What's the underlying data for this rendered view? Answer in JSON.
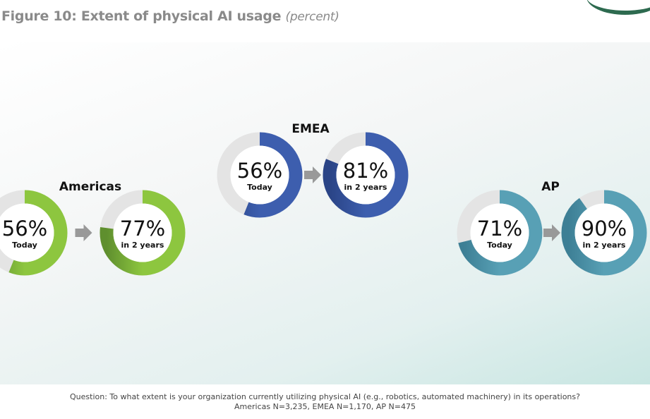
{
  "title": {
    "main": "Figure 10: Extent of physical AI usage",
    "unit": "(percent)"
  },
  "chart_data": {
    "type": "donut",
    "title": "Figure 10: Extent of physical AI usage (percent)",
    "regions": [
      {
        "name": "Americas",
        "color": "#8dc63f",
        "dark": "#5f8f2e",
        "series": [
          {
            "label": "Today",
            "value": 56
          },
          {
            "label": "in 2 years",
            "value": 77
          }
        ]
      },
      {
        "name": "EMEA",
        "color": "#3d5eae",
        "dark": "#2a4486",
        "series": [
          {
            "label": "Today",
            "value": 56
          },
          {
            "label": "in 2 years",
            "value": 81
          }
        ]
      },
      {
        "name": "AP",
        "color": "#58a0b5",
        "dark": "#3d7f95",
        "series": [
          {
            "label": "Today",
            "value": 71
          },
          {
            "label": "in 2 years",
            "value": 90
          }
        ]
      }
    ],
    "track_color": "#e4e4e4"
  },
  "footer": {
    "question": "Question: To what extent is your organization currently utilizing physical AI (e.g., robotics, automated machinery) in its operations?",
    "sample": "Americas N=3,235, EMEA N=1,170, AP N=475"
  }
}
